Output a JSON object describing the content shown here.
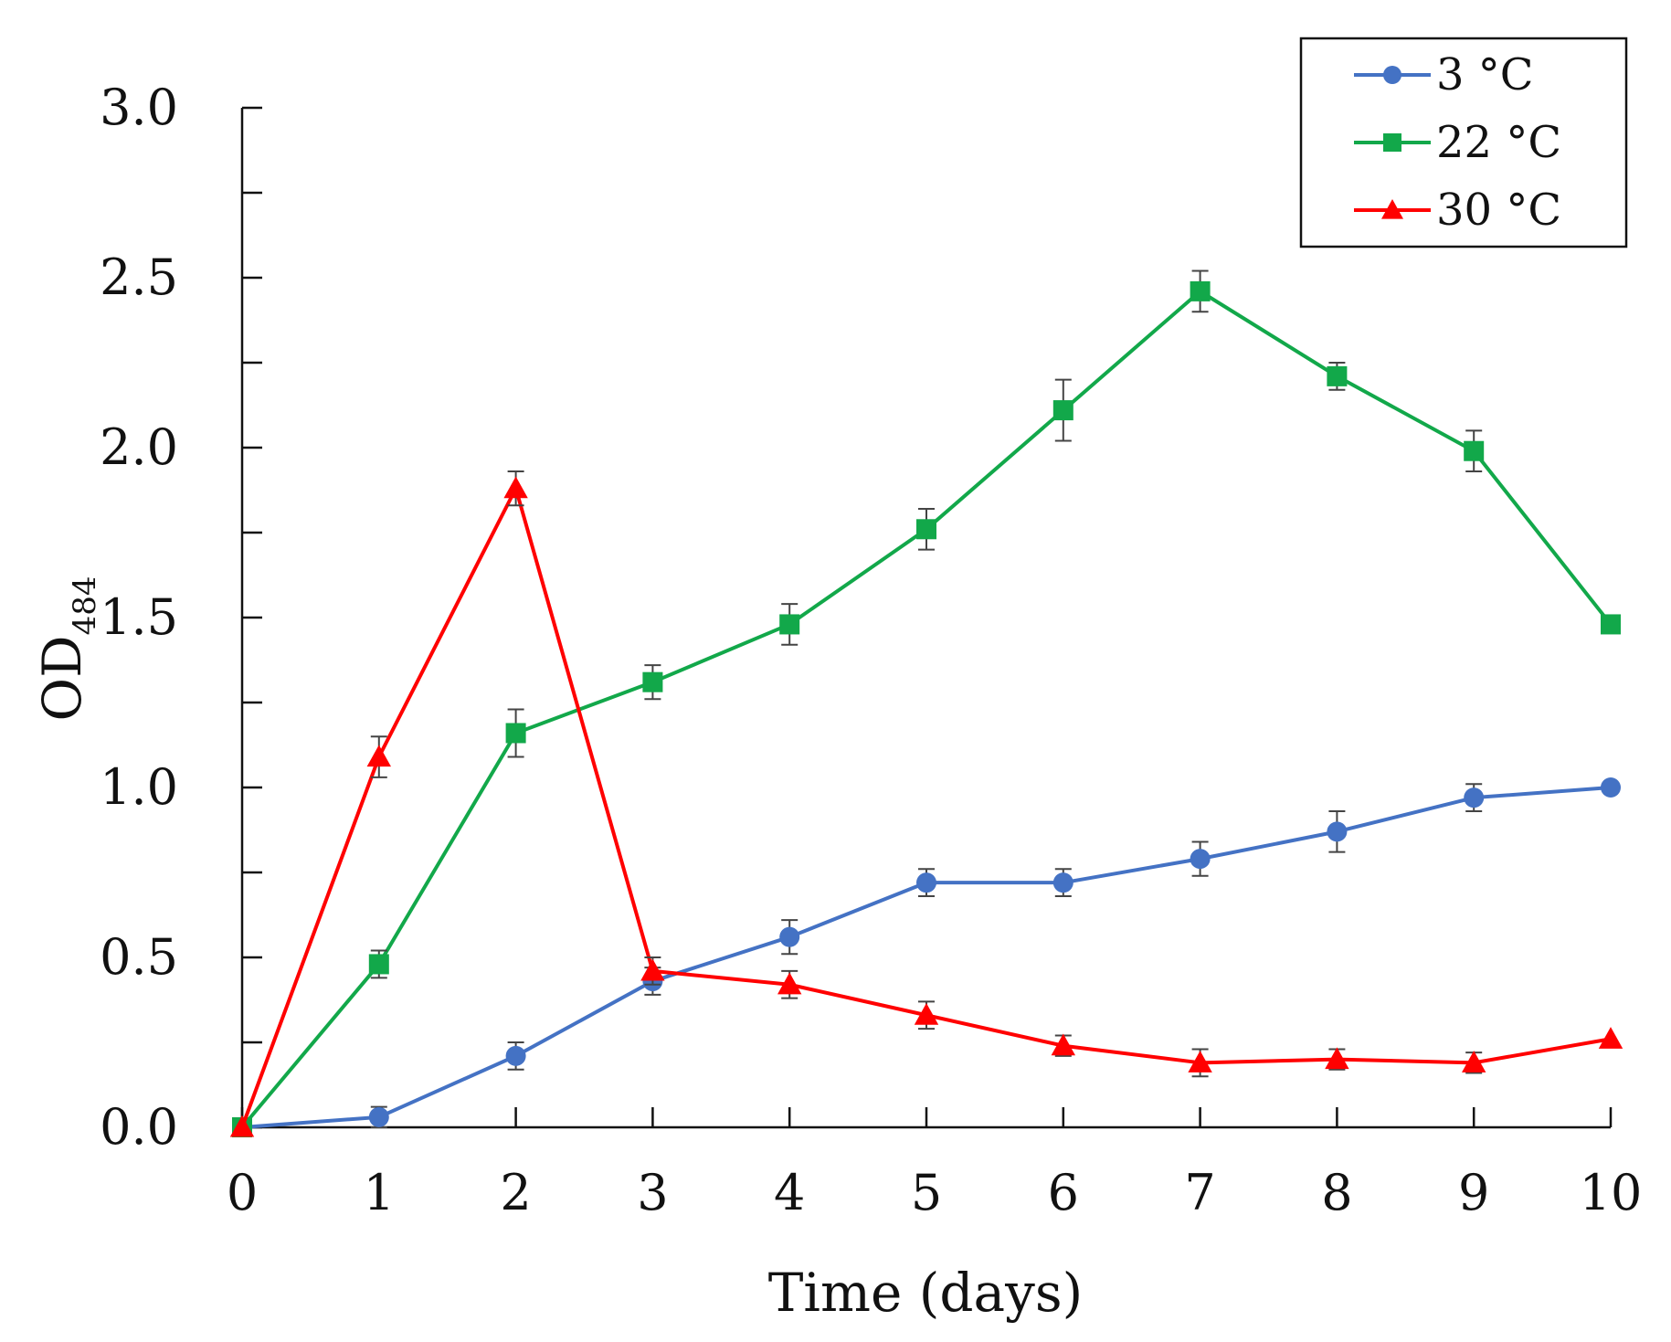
{
  "chart_data": {
    "type": "line",
    "title": "",
    "xlabel": "Time (days)",
    "ylabel": "OD",
    "ylabel_subscript": "484",
    "xlim": [
      0,
      10
    ],
    "ylim": [
      0,
      3.0
    ],
    "x_ticks": [
      0,
      1,
      2,
      3,
      4,
      5,
      6,
      7,
      8,
      9,
      10
    ],
    "x_tick_labels": [
      "0",
      "1",
      "2",
      "3",
      "4",
      "5",
      "6",
      "7",
      "8",
      "9",
      "10"
    ],
    "y_major_ticks": [
      0,
      0.5,
      1.0,
      1.5,
      2.0,
      2.5,
      3.0
    ],
    "y_tick_labels": [
      "0.0",
      "0.5",
      "1.0",
      "1.5",
      "2.0",
      "2.5",
      "3.0"
    ],
    "y_minor_ticks": [
      0.25,
      0.75,
      1.25,
      1.75,
      2.25,
      2.75
    ],
    "grid": false,
    "legend_position": "top-right",
    "x": [
      0,
      1,
      2,
      3,
      4,
      5,
      6,
      7,
      8,
      9,
      10
    ],
    "series": [
      {
        "name": "3 °C",
        "color": "#4472C4",
        "marker": "circle",
        "values": [
          0.0,
          0.03,
          0.21,
          0.43,
          0.56,
          0.72,
          0.72,
          0.79,
          0.87,
          0.97,
          1.0
        ],
        "errors": [
          0.0,
          0.03,
          0.04,
          0.04,
          0.05,
          0.04,
          0.04,
          0.05,
          0.06,
          0.04,
          0.0
        ]
      },
      {
        "name": "22 °C",
        "color": "#12A84A",
        "marker": "square",
        "values": [
          0.0,
          0.48,
          1.16,
          1.31,
          1.48,
          1.76,
          2.11,
          2.46,
          2.21,
          1.99,
          1.48
        ],
        "errors": [
          0.0,
          0.04,
          0.07,
          0.05,
          0.06,
          0.06,
          0.09,
          0.06,
          0.04,
          0.06,
          0.0
        ]
      },
      {
        "name": "30 °C",
        "color": "#FF0000",
        "marker": "triangle",
        "values": [
          0.0,
          1.09,
          1.88,
          0.46,
          0.42,
          0.33,
          0.24,
          0.19,
          0.2,
          0.19,
          0.26
        ],
        "errors": [
          0.0,
          0.06,
          0.05,
          0.04,
          0.04,
          0.04,
          0.03,
          0.04,
          0.03,
          0.03,
          0.0
        ]
      }
    ]
  }
}
